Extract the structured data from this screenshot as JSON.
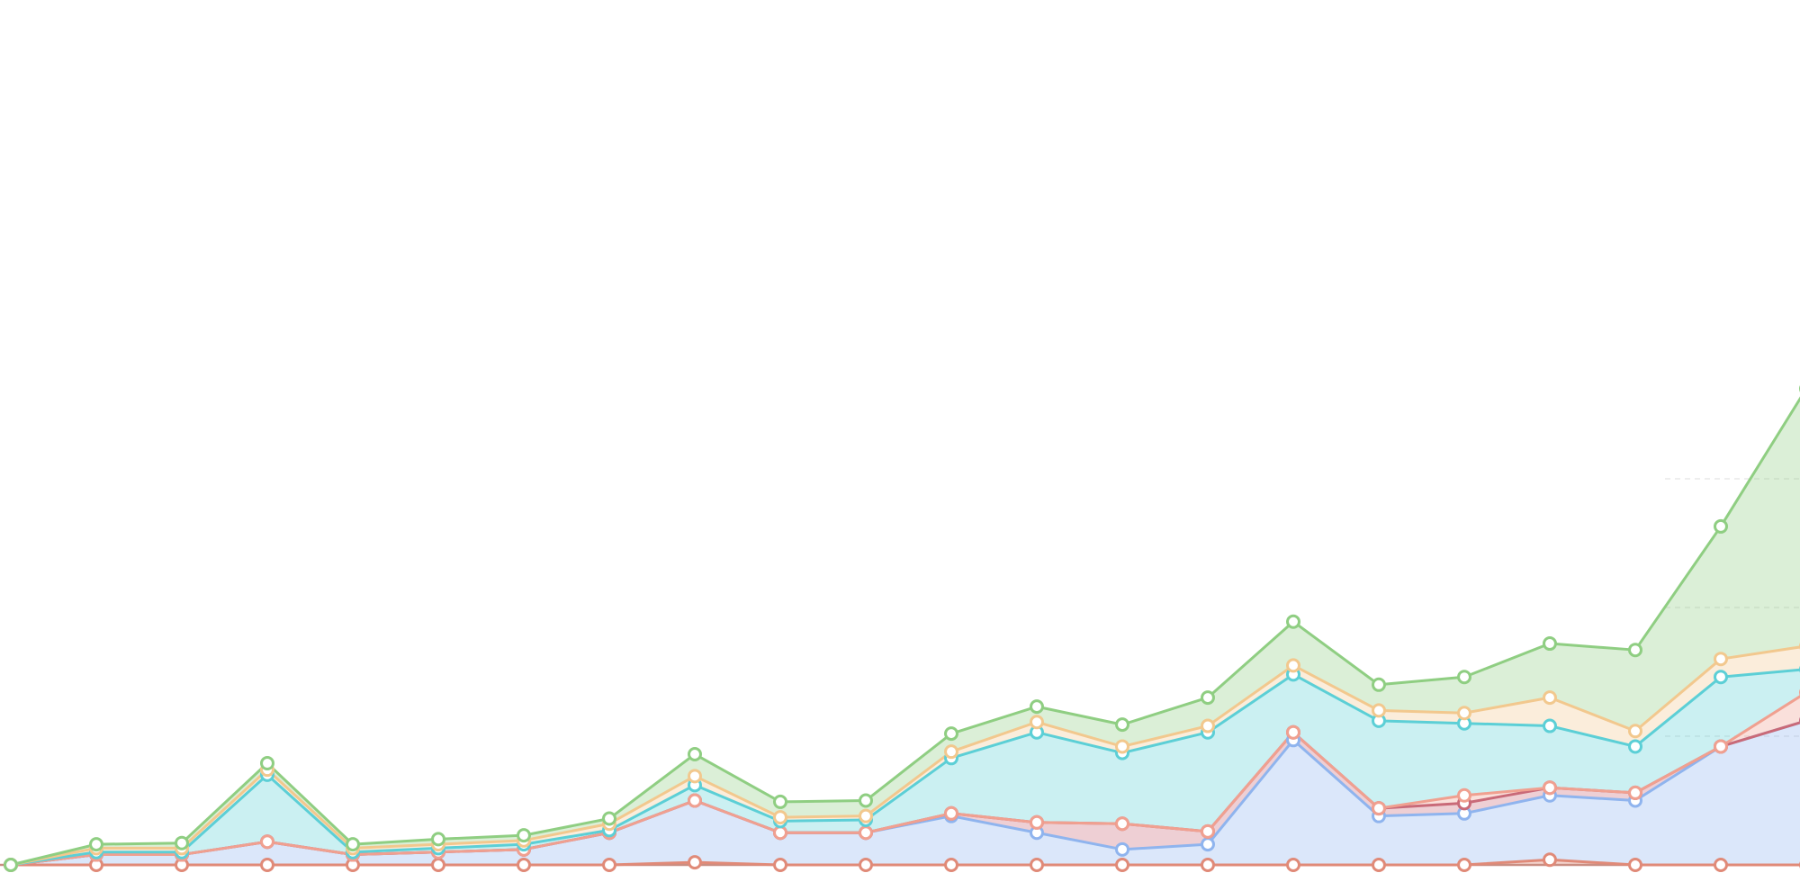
{
  "chart_data": {
    "type": "area",
    "stacked": true,
    "x": [
      1,
      2,
      3,
      4,
      5,
      6,
      7,
      8,
      9,
      10,
      11,
      12,
      13,
      14,
      15,
      16,
      17,
      18,
      19,
      20,
      21,
      22
    ],
    "ylim": [
      0,
      720
    ],
    "grid": true,
    "gridlines_y": [
      100,
      200,
      300
    ],
    "legend": "none",
    "series": [
      {
        "color": "#e08a78",
        "values": [
          0,
          0,
          0,
          0,
          0,
          0,
          0,
          0,
          2,
          0,
          0,
          0,
          0,
          0,
          0,
          0,
          0,
          0,
          4,
          0,
          0,
          0
        ]
      },
      {
        "color": "#8fb4ee",
        "values": [
          0,
          8,
          8,
          18,
          8,
          10,
          12,
          25,
          48,
          25,
          25,
          38,
          25,
          12,
          16,
          97,
          38,
          40,
          50,
          50,
          92,
          112
        ]
      },
      {
        "color": "#c96a78",
        "values": [
          0,
          0,
          0,
          0,
          0,
          0,
          0,
          0,
          0,
          0,
          0,
          2,
          8,
          20,
          10,
          6,
          6,
          8,
          6,
          6,
          0,
          0
        ]
      },
      {
        "color": "#f0a090",
        "values": [
          0,
          0,
          0,
          0,
          0,
          0,
          0,
          0,
          0,
          0,
          0,
          0,
          0,
          0,
          0,
          0,
          0,
          6,
          0,
          0,
          0,
          22
        ]
      },
      {
        "color": "#5ccfd6",
        "values": [
          0,
          2,
          2,
          52,
          2,
          3,
          4,
          2,
          12,
          9,
          10,
          43,
          70,
          55,
          77,
          45,
          68,
          56,
          48,
          36,
          54,
          18
        ]
      },
      {
        "color": "#f2c88e",
        "values": [
          0,
          3,
          3,
          4,
          3,
          3,
          3,
          5,
          7,
          3,
          3,
          5,
          8,
          5,
          5,
          7,
          8,
          8,
          22,
          12,
          14,
          18
        ]
      },
      {
        "color": "#8fce82",
        "values": [
          0,
          3,
          4,
          5,
          3,
          4,
          4,
          4,
          17,
          12,
          12,
          14,
          12,
          17,
          22,
          34,
          20,
          28,
          42,
          63,
          103,
          200
        ]
      }
    ]
  }
}
